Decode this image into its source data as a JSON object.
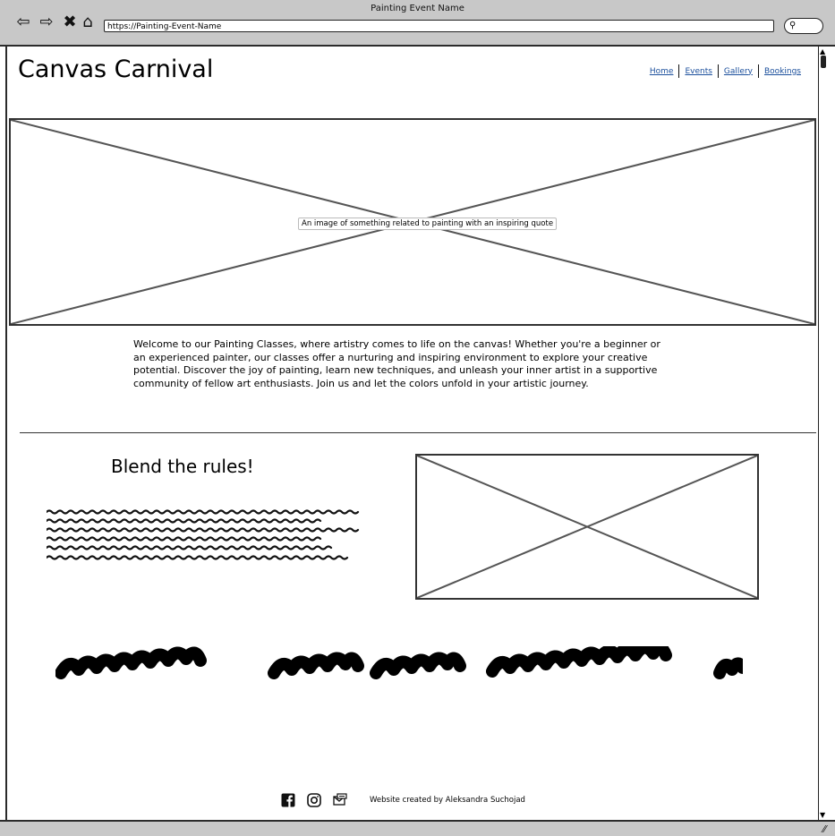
{
  "window": {
    "title": "Painting Event Name",
    "url": "https://Painting-Event-Name"
  },
  "toolbar": {
    "back_icon": "back-arrow-icon",
    "forward_icon": "forward-arrow-icon",
    "close_icon": "close-icon",
    "home_icon": "home-icon",
    "search_icon": "search-icon"
  },
  "header": {
    "site_title": "Canvas Carnival",
    "nav": [
      {
        "label": "Home"
      },
      {
        "label": "Events"
      },
      {
        "label": "Gallery"
      },
      {
        "label": "Bookings"
      }
    ]
  },
  "hero": {
    "caption": "An image of something related to painting with an inspiring quote"
  },
  "intro": {
    "text": "Welcome to our Painting Classes, where artistry comes to life on the canvas! Whether you're a beginner or an experienced painter, our classes offer a nurturing and inspiring environment to explore your creative potential. Discover the joy of painting, learn new techniques, and unleash your inner artist in a supportive community of fellow art enthusiasts. Join us and let the colors unfold in your artistic journey."
  },
  "section": {
    "heading": "Blend the rules!"
  },
  "footer": {
    "icons": [
      "facebook-icon",
      "instagram-icon",
      "email-icon"
    ],
    "credit": "Website created by Aleksandra Suchojad"
  },
  "colors": {
    "chrome": "#c8c8c8",
    "link": "#1b4f9c",
    "border": "#333333"
  }
}
